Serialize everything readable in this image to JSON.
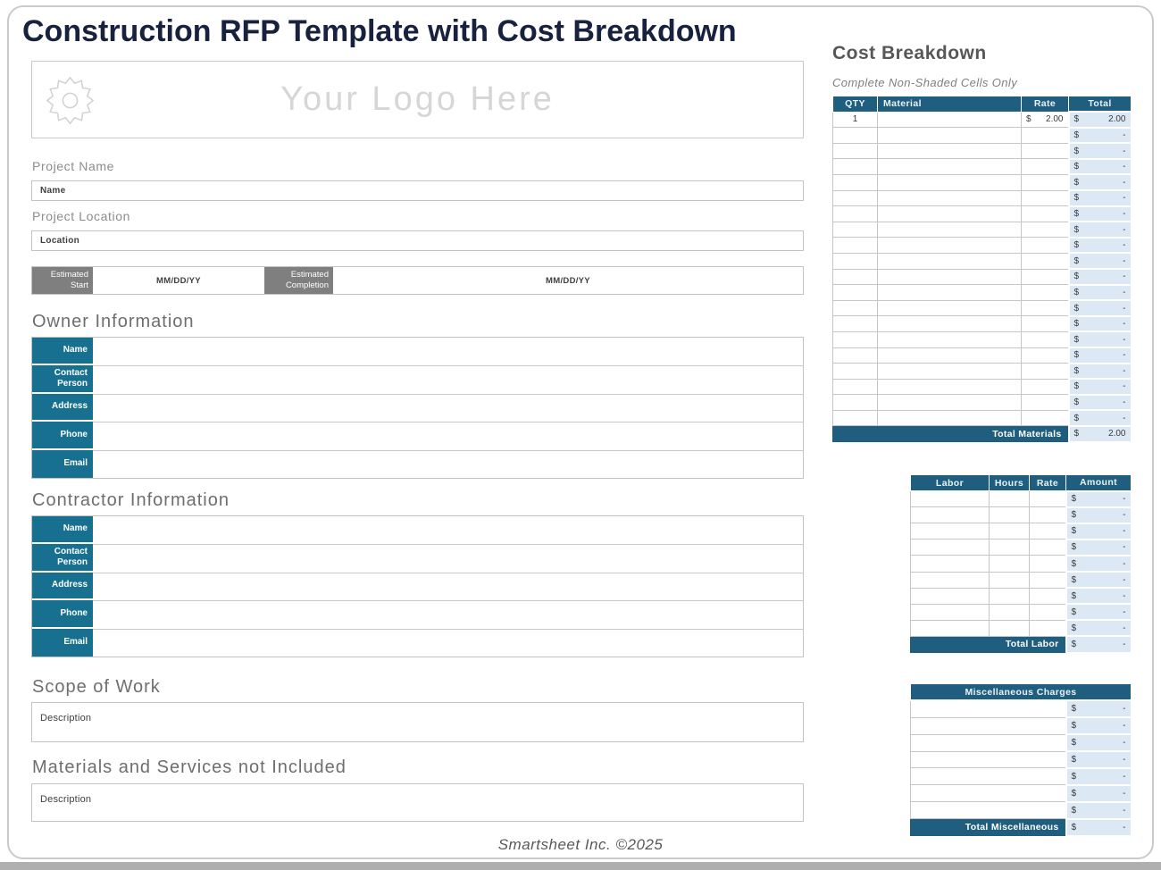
{
  "title": "Construction RFP Template with Cost Breakdown",
  "footer": "Smartsheet Inc. ©2025",
  "colors": {
    "title_navy": "#18223F",
    "label_teal": "#17708F",
    "table_header_teal": "#1F5E7E",
    "shaded_cell_blue": "#DCE9F5",
    "gray_box": "#7F7F7F",
    "heading_gray": "#6E6E6E"
  },
  "logo": {
    "icon": "saw-blade-icon",
    "placeholder": "Your Logo Here"
  },
  "project": {
    "name_label": "Project Name",
    "name_value": "Name",
    "location_label": "Project Location",
    "location_value": "Location",
    "estimated_start_label": "Estimated Start",
    "estimated_start_value": "MM/DD/YY",
    "estimated_completion_label": "Estimated Completion",
    "estimated_completion_value": "MM/DD/YY"
  },
  "owner": {
    "heading": "Owner Information",
    "fields": [
      "Name",
      "Contact Person",
      "Address",
      "Phone",
      "Email"
    ]
  },
  "contractor": {
    "heading": "Contractor Information",
    "fields": [
      "Name",
      "Contact Person",
      "Address",
      "Phone",
      "Email"
    ]
  },
  "scope_of_work": {
    "heading": "Scope of Work",
    "placeholder": "Description"
  },
  "materials_not_included": {
    "heading": "Materials and Services not Included",
    "placeholder": "Description"
  },
  "cost_breakdown": {
    "heading": "Cost Breakdown",
    "note": "Complete Non-Shaded Cells Only",
    "materials_table": {
      "headers": [
        "QTY",
        "Material",
        "Rate",
        "Total"
      ],
      "currency": "$",
      "rows": [
        {
          "qty": "1",
          "material": "",
          "rate": "2.00",
          "total": "2.00"
        },
        {
          "qty": "",
          "material": "",
          "rate": "",
          "total": "-"
        },
        {
          "qty": "",
          "material": "",
          "rate": "",
          "total": "-"
        },
        {
          "qty": "",
          "material": "",
          "rate": "",
          "total": "-"
        },
        {
          "qty": "",
          "material": "",
          "rate": "",
          "total": "-"
        },
        {
          "qty": "",
          "material": "",
          "rate": "",
          "total": "-"
        },
        {
          "qty": "",
          "material": "",
          "rate": "",
          "total": "-"
        },
        {
          "qty": "",
          "material": "",
          "rate": "",
          "total": "-"
        },
        {
          "qty": "",
          "material": "",
          "rate": "",
          "total": "-"
        },
        {
          "qty": "",
          "material": "",
          "rate": "",
          "total": "-"
        },
        {
          "qty": "",
          "material": "",
          "rate": "",
          "total": "-"
        },
        {
          "qty": "",
          "material": "",
          "rate": "",
          "total": "-"
        },
        {
          "qty": "",
          "material": "",
          "rate": "",
          "total": "-"
        },
        {
          "qty": "",
          "material": "",
          "rate": "",
          "total": "-"
        },
        {
          "qty": "",
          "material": "",
          "rate": "",
          "total": "-"
        },
        {
          "qty": "",
          "material": "",
          "rate": "",
          "total": "-"
        },
        {
          "qty": "",
          "material": "",
          "rate": "",
          "total": "-"
        },
        {
          "qty": "",
          "material": "",
          "rate": "",
          "total": "-"
        },
        {
          "qty": "",
          "material": "",
          "rate": "",
          "total": "-"
        },
        {
          "qty": "",
          "material": "",
          "rate": "",
          "total": "-"
        }
      ],
      "total_label": "Total Materials",
      "total_value": "2.00"
    },
    "labor_table": {
      "headers": [
        "Labor",
        "Hours",
        "Rate",
        "Amount"
      ],
      "currency": "$",
      "rows": [
        {
          "labor": "",
          "hours": "",
          "rate": "",
          "amount": "-"
        },
        {
          "labor": "",
          "hours": "",
          "rate": "",
          "amount": "-"
        },
        {
          "labor": "",
          "hours": "",
          "rate": "",
          "amount": "-"
        },
        {
          "labor": "",
          "hours": "",
          "rate": "",
          "amount": "-"
        },
        {
          "labor": "",
          "hours": "",
          "rate": "",
          "amount": "-"
        },
        {
          "labor": "",
          "hours": "",
          "rate": "",
          "amount": "-"
        },
        {
          "labor": "",
          "hours": "",
          "rate": "",
          "amount": "-"
        },
        {
          "labor": "",
          "hours": "",
          "rate": "",
          "amount": "-"
        },
        {
          "labor": "",
          "hours": "",
          "rate": "",
          "amount": "-"
        }
      ],
      "total_label": "Total Labor",
      "total_value": "-"
    },
    "misc_table": {
      "header": "Miscellaneous Charges",
      "currency": "$",
      "rows": [
        {
          "description": "",
          "amount": "-"
        },
        {
          "description": "",
          "amount": "-"
        },
        {
          "description": "",
          "amount": "-"
        },
        {
          "description": "",
          "amount": "-"
        },
        {
          "description": "",
          "amount": "-"
        },
        {
          "description": "",
          "amount": "-"
        },
        {
          "description": "",
          "amount": "-"
        }
      ],
      "total_label": "Total Miscellaneous",
      "total_value": "-"
    }
  }
}
